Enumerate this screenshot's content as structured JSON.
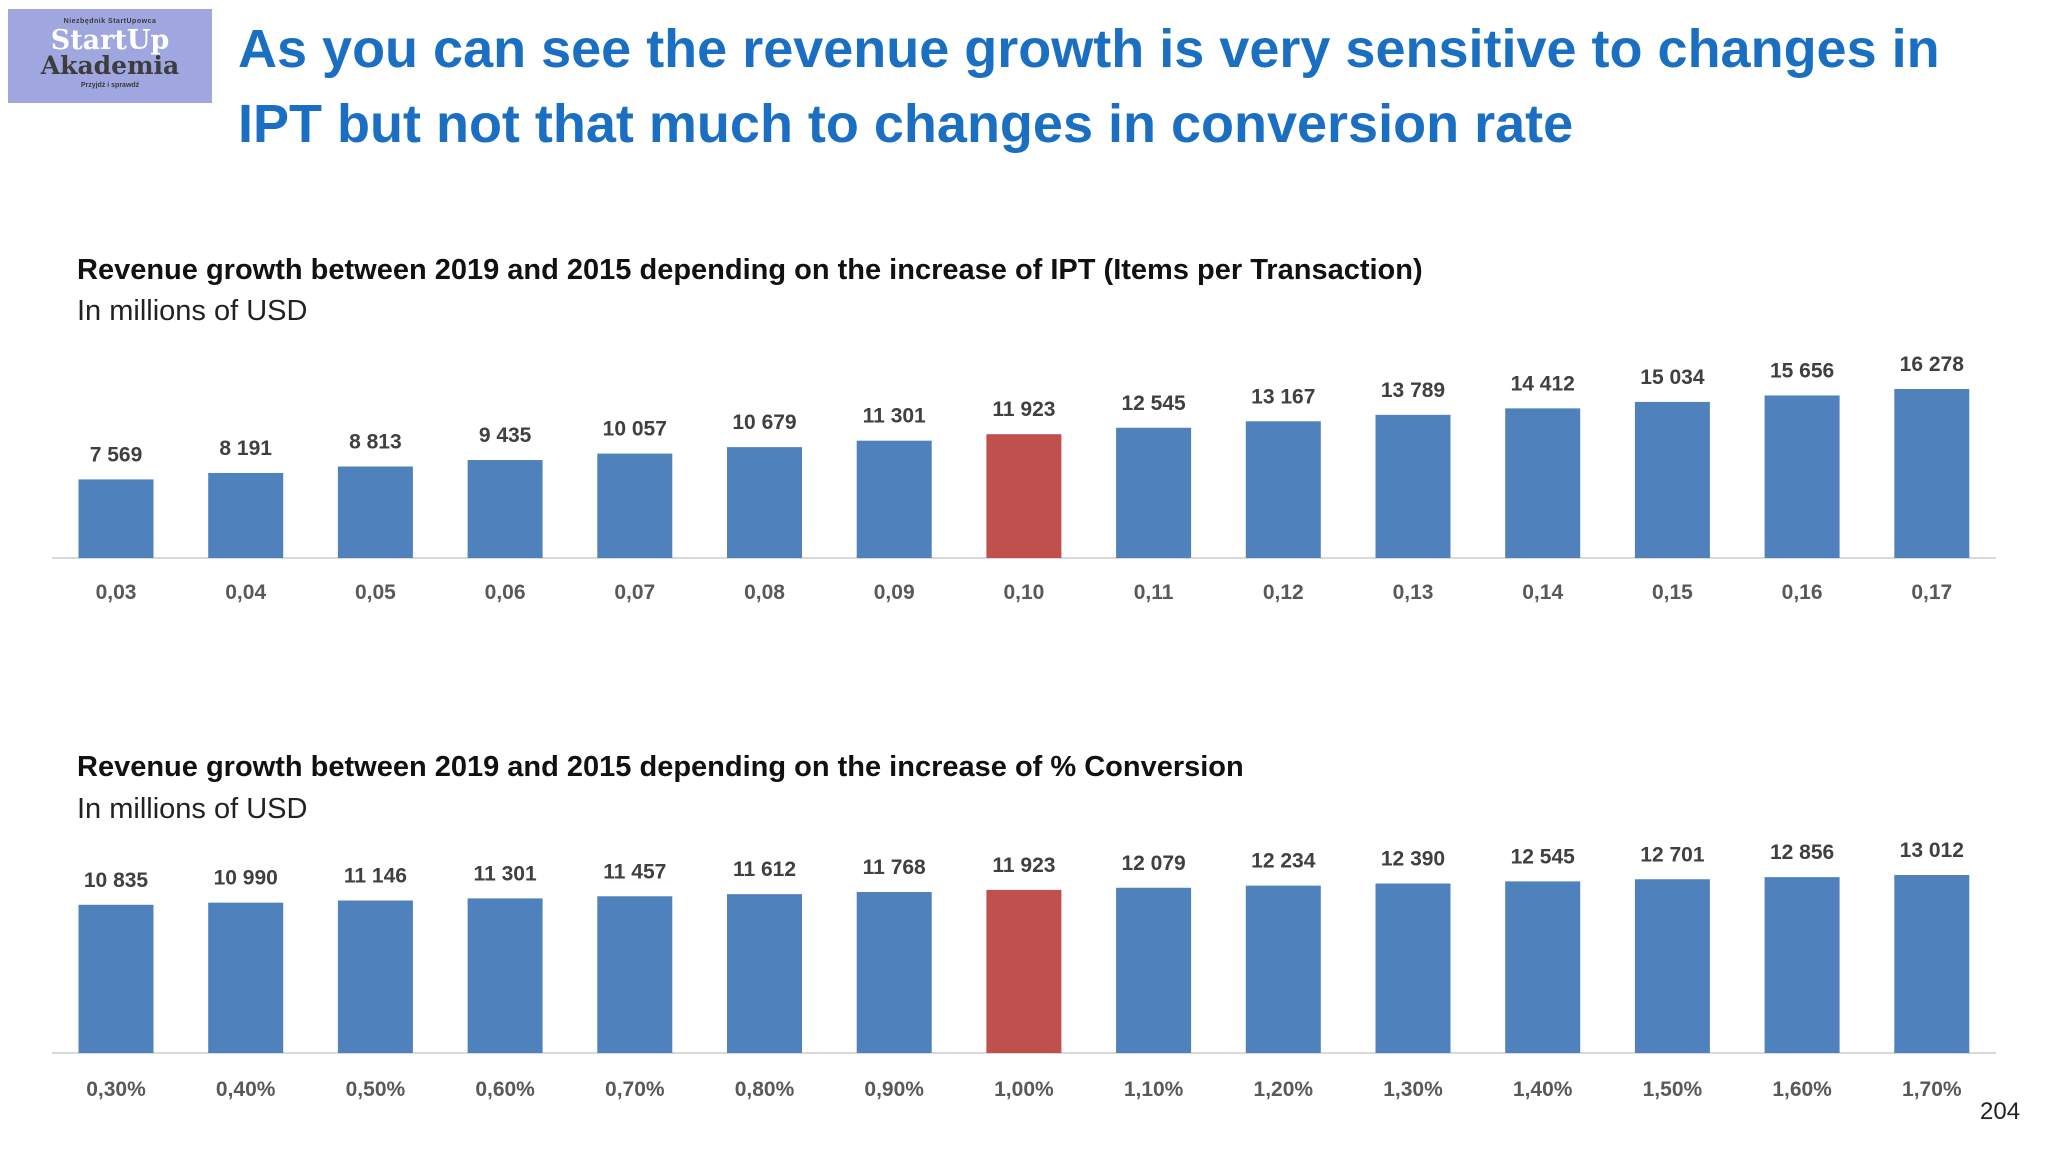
{
  "logo": {
    "top_text": "Niezbędnik StartUpowca",
    "line1": "StartUp",
    "line2": "Akademia",
    "bottom_text": "Przyjdź i sprawdź"
  },
  "headline": "As you can see the revenue growth is very sensitive to changes in IPT but not that much to changes in conversion rate",
  "page_number": "204",
  "colors": {
    "bar": "#4f81bd",
    "highlight": "#c0504d",
    "headline": "#1b6fc2"
  },
  "chart_data": [
    {
      "type": "bar",
      "title": "Revenue growth between 2019 and 2015 depending on the increase of IPT (Items per Transaction)",
      "subtitle": "In millions of USD",
      "categories": [
        "0,03",
        "0,04",
        "0,05",
        "0,06",
        "0,07",
        "0,08",
        "0,09",
        "0,10",
        "0,11",
        "0,12",
        "0,13",
        "0,14",
        "0,15",
        "0,16",
        "0,17"
      ],
      "values": [
        7569,
        8191,
        8813,
        9435,
        10057,
        10679,
        11301,
        11923,
        12545,
        13167,
        13789,
        14412,
        15034,
        15656,
        16278
      ],
      "data_labels": [
        "7 569",
        "8 191",
        "8 813",
        "9 435",
        "10 057",
        "10 679",
        "11 301",
        "11 923",
        "12 545",
        "13 167",
        "13 789",
        "14 412",
        "15 034",
        "15 656",
        "16 278"
      ],
      "highlight_index": 7,
      "grid": false
    },
    {
      "type": "bar",
      "title": "Revenue growth between 2019 and 2015 depending on the increase of % Conversion",
      "subtitle": "In millions of USD",
      "categories": [
        "0,30%",
        "0,40%",
        "0,50%",
        "0,60%",
        "0,70%",
        "0,80%",
        "0,90%",
        "1,00%",
        "1,10%",
        "1,20%",
        "1,30%",
        "1,40%",
        "1,50%",
        "1,60%",
        "1,70%"
      ],
      "values": [
        10835,
        10990,
        11146,
        11301,
        11457,
        11612,
        11768,
        11923,
        12079,
        12234,
        12390,
        12545,
        12701,
        12856,
        13012
      ],
      "data_labels": [
        "10 835",
        "10 990",
        "11 146",
        "11 301",
        "11 457",
        "11 612",
        "11 768",
        "11 923",
        "12 079",
        "12 234",
        "12 390",
        "12 545",
        "12 701",
        "12 856",
        "13 012"
      ],
      "highlight_index": 7,
      "grid": false
    }
  ]
}
